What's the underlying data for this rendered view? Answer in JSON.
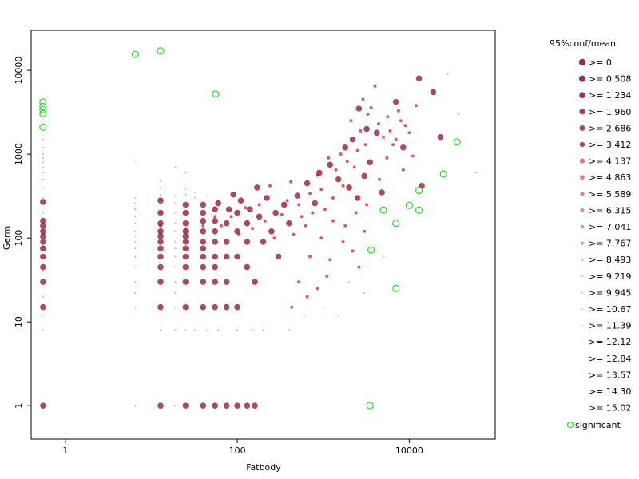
{
  "chart_data": {
    "type": "scatter",
    "xlabel": "Fatbody",
    "ylabel": "Germ",
    "x_scale": "log",
    "y_scale": "log",
    "xlim": [
      0.4,
      100000
    ],
    "ylim": [
      0.4,
      30000
    ],
    "x_ticks": [
      1,
      100,
      10000
    ],
    "x_tick_labels": [
      "1",
      "100",
      "10000"
    ],
    "y_ticks": [
      1,
      10,
      100,
      1000,
      10000
    ],
    "y_tick_labels": [
      "1",
      "10",
      "100",
      "1000",
      "10000"
    ],
    "grid": false,
    "legend": {
      "title": "95%conf/mean",
      "placement": "right",
      "entries": [
        ">= 0",
        ">= 0.508",
        ">= 1.234",
        ">= 1.960",
        ">= 2.686",
        ">= 3.412",
        ">= 4.137",
        ">= 4.863",
        ">= 5.589",
        ">= 6.315",
        ">= 7.041",
        ">= 7.767",
        ">= 8.493",
        ">= 9.219",
        ">= 9.945",
        ">= 10.67",
        ">= 11.39",
        ">= 12.12",
        ">= 12.84",
        ">= 13.57",
        ">= 14.30",
        ">= 15.02"
      ],
      "significant_label": "significant"
    },
    "colors": {
      "low_ratio": "#8b0f2a",
      "mid_ratio": "#c8383a",
      "high_ratio": "#f08a2a",
      "significant": "#22dd22"
    },
    "series": [
      {
        "name": "significant",
        "points": [
          [
            0.55,
            4200
          ],
          [
            0.55,
            3700
          ],
          [
            0.55,
            3400
          ],
          [
            0.55,
            3050
          ],
          [
            0.55,
            2100
          ],
          [
            6.5,
            15500
          ],
          [
            12.8,
            17000
          ],
          [
            56,
            5200
          ],
          [
            3500,
            1
          ],
          [
            36000,
            1400
          ],
          [
            25000,
            580
          ],
          [
            13000,
            370
          ],
          [
            10000,
            245
          ],
          [
            5000,
            215
          ],
          [
            7000,
            150
          ],
          [
            13000,
            215
          ],
          [
            3600,
            72
          ],
          [
            7000,
            25
          ]
        ]
      },
      {
        "name": "confident",
        "points": [
          [
            0.55,
            1
          ],
          [
            0.55,
            15
          ],
          [
            0.55,
            30
          ],
          [
            0.55,
            45
          ],
          [
            0.55,
            60
          ],
          [
            0.55,
            75
          ],
          [
            0.55,
            90
          ],
          [
            0.55,
            105
          ],
          [
            0.55,
            120
          ],
          [
            0.55,
            140
          ],
          [
            0.55,
            160
          ],
          [
            0.55,
            270
          ],
          [
            12.8,
            1
          ],
          [
            12.8,
            15
          ],
          [
            12.8,
            30
          ],
          [
            12.8,
            45
          ],
          [
            12.8,
            60
          ],
          [
            12.8,
            75
          ],
          [
            12.8,
            90
          ],
          [
            12.8,
            105
          ],
          [
            12.8,
            120
          ],
          [
            12.8,
            150
          ],
          [
            12.8,
            200
          ],
          [
            12.8,
            280
          ],
          [
            25,
            1
          ],
          [
            25,
            15
          ],
          [
            25,
            30
          ],
          [
            25,
            45
          ],
          [
            25,
            60
          ],
          [
            25,
            75
          ],
          [
            25,
            90
          ],
          [
            25,
            105
          ],
          [
            25,
            120
          ],
          [
            25,
            150
          ],
          [
            25,
            200
          ],
          [
            25,
            250
          ],
          [
            40,
            1
          ],
          [
            40,
            15
          ],
          [
            40,
            30
          ],
          [
            40,
            45
          ],
          [
            40,
            60
          ],
          [
            40,
            75
          ],
          [
            40,
            90
          ],
          [
            40,
            120
          ],
          [
            40,
            160
          ],
          [
            40,
            200
          ],
          [
            40,
            250
          ],
          [
            55,
            1
          ],
          [
            55,
            15
          ],
          [
            55,
            30
          ],
          [
            55,
            45
          ],
          [
            55,
            60
          ],
          [
            55,
            90
          ],
          [
            55,
            120
          ],
          [
            55,
            160
          ],
          [
            55,
            220
          ],
          [
            75,
            1
          ],
          [
            75,
            15
          ],
          [
            75,
            30
          ],
          [
            75,
            60
          ],
          [
            75,
            90
          ],
          [
            75,
            150
          ],
          [
            100,
            1
          ],
          [
            100,
            15
          ],
          [
            100,
            60
          ],
          [
            100,
            120
          ],
          [
            100,
            200
          ],
          [
            130,
            1
          ],
          [
            130,
            45
          ],
          [
            130,
            90
          ],
          [
            130,
            150
          ],
          [
            160,
            1
          ],
          [
            160,
            30
          ],
          [
            180,
            180
          ],
          [
            200,
            90
          ],
          [
            250,
            120
          ],
          [
            300,
            60
          ],
          [
            60,
            260
          ],
          [
            80,
            220
          ],
          [
            90,
            330
          ],
          [
            110,
            280
          ],
          [
            140,
            220
          ],
          [
            170,
            400
          ],
          [
            220,
            300
          ],
          [
            280,
            200
          ],
          [
            350,
            250
          ],
          [
            400,
            150
          ],
          [
            500,
            320
          ],
          [
            650,
            450
          ],
          [
            800,
            260
          ],
          [
            900,
            600
          ],
          [
            1200,
            750
          ],
          [
            1500,
            500
          ],
          [
            2000,
            400
          ],
          [
            2500,
            300
          ],
          [
            3000,
            550
          ],
          [
            3500,
            800
          ],
          [
            1800,
            1200
          ],
          [
            2200,
            1500
          ],
          [
            3200,
            2000
          ],
          [
            4200,
            1800
          ],
          [
            2600,
            3500
          ],
          [
            19000,
            5500
          ],
          [
            13000,
            8000
          ],
          [
            7000,
            4200
          ],
          [
            4800,
            350
          ],
          [
            8500,
            1200
          ],
          [
            14000,
            420
          ],
          [
            23000,
            1600
          ]
        ]
      },
      {
        "name": "intermediate",
        "points": [
          [
            12.8,
            140
          ],
          [
            25,
            130
          ],
          [
            40,
            140
          ],
          [
            55,
            180
          ],
          [
            65,
            140
          ],
          [
            85,
            180
          ],
          [
            105,
            110
          ],
          [
            125,
            230
          ],
          [
            150,
            130
          ],
          [
            180,
            250
          ],
          [
            210,
            160
          ],
          [
            240,
            420
          ],
          [
            270,
            100
          ],
          [
            330,
            190
          ],
          [
            380,
            280
          ],
          [
            420,
            470
          ],
          [
            450,
            110
          ],
          [
            520,
            250
          ],
          [
            560,
            180
          ],
          [
            620,
            140
          ],
          [
            700,
            340
          ],
          [
            750,
            200
          ],
          [
            850,
            560
          ],
          [
            950,
            380
          ],
          [
            1050,
            220
          ],
          [
            1150,
            900
          ],
          [
            1300,
            300
          ],
          [
            1400,
            650
          ],
          [
            1600,
            1000
          ],
          [
            1700,
            420
          ],
          [
            1900,
            820
          ],
          [
            2100,
            2500
          ],
          [
            2300,
            700
          ],
          [
            2500,
            1100
          ],
          [
            2700,
            1900
          ],
          [
            2900,
            4500
          ],
          [
            3100,
            1300
          ],
          [
            3300,
            3000
          ],
          [
            3600,
            3600
          ],
          [
            4000,
            6500
          ],
          [
            4400,
            2300
          ],
          [
            5000,
            1600
          ],
          [
            5600,
            2800
          ],
          [
            6000,
            1900
          ],
          [
            7000,
            1500
          ],
          [
            7500,
            3300
          ],
          [
            8500,
            650
          ],
          [
            9000,
            2200
          ],
          [
            10000,
            1800
          ],
          [
            11000,
            950
          ],
          [
            12000,
            3800
          ],
          [
            1200,
            55
          ],
          [
            1700,
            90
          ],
          [
            2200,
            70
          ],
          [
            2600,
            45
          ],
          [
            3000,
            120
          ],
          [
            1100,
            35
          ],
          [
            850,
            25
          ],
          [
            650,
            20
          ],
          [
            520,
            30
          ],
          [
            430,
            15
          ],
          [
            700,
            60
          ],
          [
            950,
            100
          ],
          [
            1300,
            160
          ],
          [
            1800,
            140
          ],
          [
            2400,
            200
          ],
          [
            3200,
            250
          ],
          [
            4500,
            500
          ],
          [
            5500,
            900
          ],
          [
            6500,
            1300
          ],
          [
            8000,
            2500
          ]
        ]
      },
      {
        "name": "noisy",
        "points": [
          [
            0.55,
            8
          ],
          [
            0.55,
            12
          ],
          [
            0.55,
            20
          ],
          [
            0.55,
            40
          ],
          [
            0.55,
            80
          ],
          [
            0.55,
            150
          ],
          [
            0.55,
            200
          ],
          [
            0.55,
            300
          ],
          [
            0.55,
            400
          ],
          [
            0.55,
            500
          ],
          [
            0.55,
            600
          ],
          [
            0.55,
            700
          ],
          [
            0.55,
            800
          ],
          [
            0.55,
            900
          ],
          [
            0.55,
            1000
          ],
          [
            0.55,
            1200
          ],
          [
            0.55,
            1500
          ],
          [
            6.5,
            1
          ],
          [
            6.5,
            15
          ],
          [
            6.5,
            22
          ],
          [
            6.5,
            30
          ],
          [
            6.5,
            45
          ],
          [
            6.5,
            60
          ],
          [
            6.5,
            75
          ],
          [
            6.5,
            90
          ],
          [
            6.5,
            105
          ],
          [
            6.5,
            120
          ],
          [
            6.5,
            150
          ],
          [
            6.5,
            180
          ],
          [
            6.5,
            220
          ],
          [
            6.5,
            260
          ],
          [
            6.5,
            300
          ],
          [
            12.8,
            8
          ],
          [
            12.8,
            330
          ],
          [
            12.8,
            400
          ],
          [
            12.8,
            480
          ],
          [
            19,
            1
          ],
          [
            19,
            8
          ],
          [
            19,
            15
          ],
          [
            19,
            22
          ],
          [
            19,
            30
          ],
          [
            19,
            45
          ],
          [
            19,
            60
          ],
          [
            19,
            75
          ],
          [
            19,
            90
          ],
          [
            19,
            120
          ],
          [
            19,
            150
          ],
          [
            19,
            200
          ],
          [
            19,
            260
          ],
          [
            19,
            320
          ],
          [
            25,
            8
          ],
          [
            25,
            330
          ],
          [
            25,
            380
          ],
          [
            32,
            8
          ],
          [
            32,
            300
          ],
          [
            32,
            350
          ],
          [
            45,
            8
          ],
          [
            45,
            320
          ],
          [
            6.5,
            850
          ],
          [
            19,
            700
          ],
          [
            25,
            600
          ],
          [
            60,
            8
          ],
          [
            100,
            8
          ],
          [
            200,
            8
          ],
          [
            400,
            8
          ],
          [
            1000,
            15
          ],
          [
            2000,
            30
          ],
          [
            5000,
            60
          ],
          [
            28000,
            9000
          ],
          [
            60000,
            600
          ],
          [
            38000,
            3000
          ],
          [
            1500,
            12
          ],
          [
            3000,
            22
          ],
          [
            600,
            12
          ],
          [
            150,
            8
          ]
        ]
      }
    ]
  }
}
